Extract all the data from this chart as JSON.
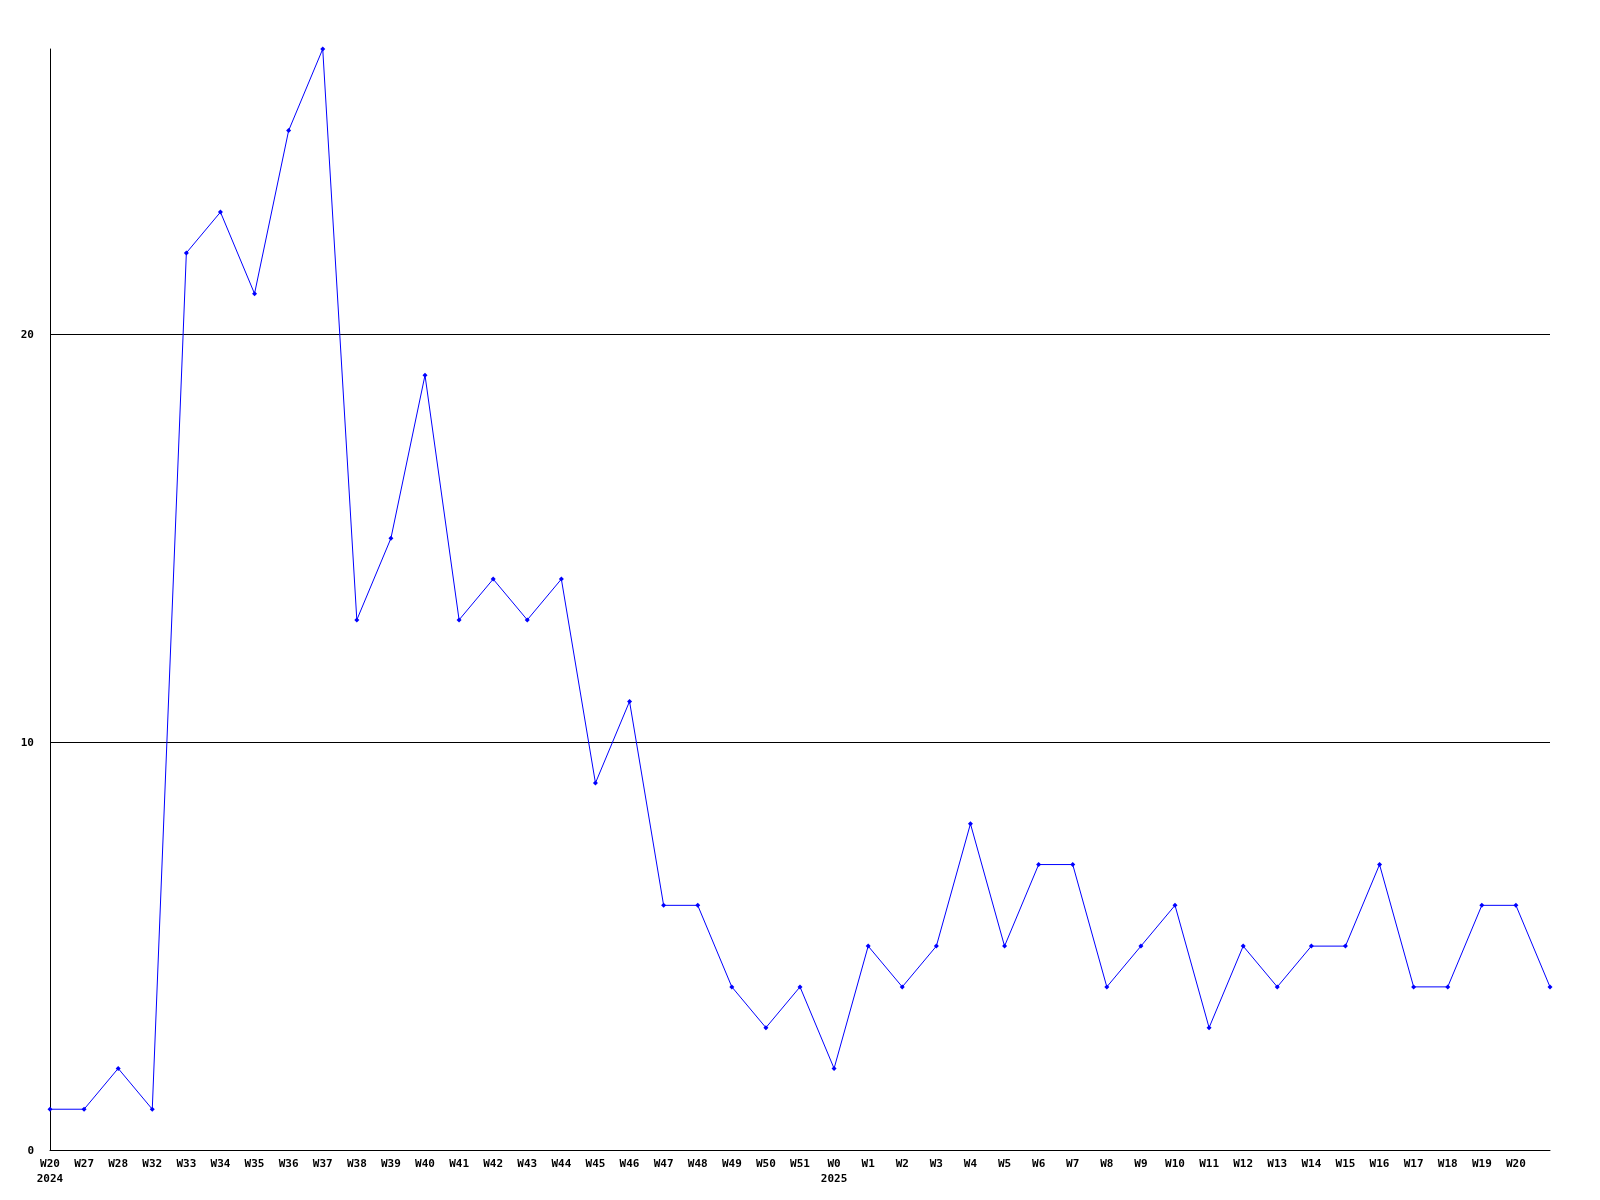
{
  "chart_data": {
    "type": "line",
    "categories": [
      "W20\n2024",
      "W27",
      "W28",
      "W32",
      "W33",
      "W34",
      "W35",
      "W36",
      "W37",
      "W38",
      "W39",
      "W40",
      "W41",
      "W42",
      "W43",
      "W44",
      "W45",
      "W46",
      "W47",
      "W48",
      "W49",
      "W50",
      "W51",
      "W0\n2025",
      "W1",
      "W2",
      "W3",
      "W4",
      "W5",
      "W6",
      "W7",
      "W8",
      "W9",
      "W10",
      "W11",
      "W12",
      "W13",
      "W14",
      "W15",
      "W16",
      "W17",
      "W18",
      "W19",
      "W20",
      null
    ],
    "series": [
      {
        "color": "#0000ff",
        "values": [
          1,
          1,
          2,
          1,
          22,
          23,
          21,
          25,
          27,
          13,
          15,
          19,
          13,
          14,
          13,
          14,
          9,
          11,
          6,
          6,
          4,
          3,
          4,
          2,
          5,
          4,
          5,
          8,
          5,
          7,
          7,
          4,
          5,
          6,
          3,
          5,
          4,
          5,
          5,
          7,
          4,
          4,
          6,
          6,
          4
        ]
      }
    ],
    "ylim": [
      0,
      27
    ],
    "yticks": [
      0,
      10,
      20
    ],
    "grid": "y",
    "marker": "diamond",
    "line_style": "solid"
  }
}
